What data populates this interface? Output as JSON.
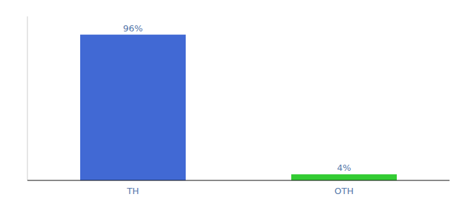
{
  "chart_data": {
    "type": "bar",
    "categories": [
      "TH",
      "OTH"
    ],
    "values": [
      96,
      4
    ],
    "value_labels": [
      "96%",
      "4%"
    ],
    "colors": [
      "#4169d4",
      "#33cc33"
    ],
    "ylim": [
      0,
      108
    ],
    "data_labels": true,
    "tick_labels": "x"
  }
}
